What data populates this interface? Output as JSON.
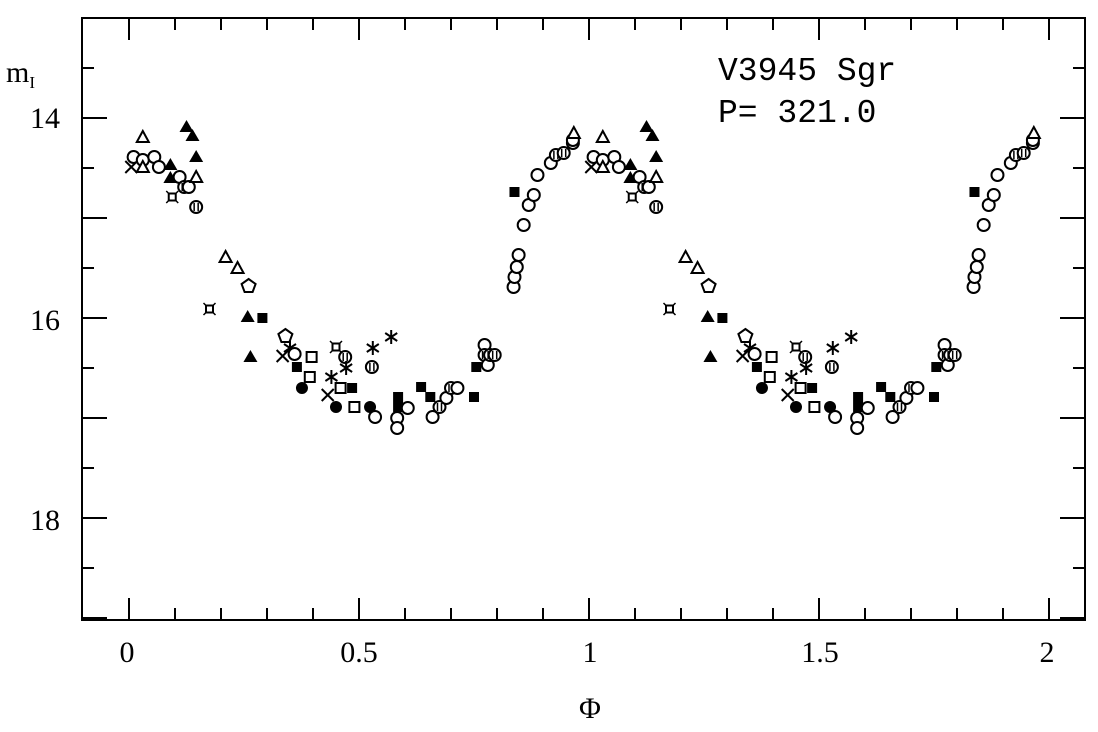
{
  "chart_data": {
    "type": "scatter",
    "title": "",
    "annotations": [
      "V3945 Sgr",
      "P= 321.0"
    ],
    "xlabel": "Φ",
    "ylabel": "m",
    "ylabel_subscript": "I",
    "xlim": [
      -0.1,
      2.08
    ],
    "ylim": [
      19,
      13
    ],
    "y_inverted": true,
    "x_ticks": [
      "0",
      "0.5",
      "1",
      "1.5",
      "2"
    ],
    "y_ticks": [
      "14",
      "16",
      "18"
    ],
    "grid": false,
    "repeated_cycles": 2,
    "marker_colors": {
      "ink": "#000000",
      "paper": "#ffffff"
    },
    "points": [
      [
        0.03,
        14.19,
        "open-triangle"
      ],
      [
        0.01,
        14.39,
        "open-circle"
      ],
      [
        0.03,
        14.42,
        "open-circle"
      ],
      [
        0.055,
        14.39,
        "open-circle"
      ],
      [
        0.065,
        14.49,
        "open-circle"
      ],
      [
        0.005,
        14.49,
        "cross"
      ],
      [
        0.03,
        14.49,
        "open-triangle"
      ],
      [
        0.09,
        14.47,
        "filled-triangle"
      ],
      [
        0.09,
        14.6,
        "filled-triangle"
      ],
      [
        0.125,
        14.09,
        "filled-triangle"
      ],
      [
        0.138,
        14.18,
        "filled-triangle"
      ],
      [
        0.146,
        14.39,
        "filled-triangle"
      ],
      [
        0.11,
        14.59,
        "open-circle"
      ],
      [
        0.12,
        14.69,
        "barred-circle"
      ],
      [
        0.13,
        14.69,
        "open-circle"
      ],
      [
        0.146,
        14.59,
        "open-triangle"
      ],
      [
        0.094,
        14.79,
        "star-square"
      ],
      [
        0.146,
        14.89,
        "barred-circle"
      ],
      [
        0.21,
        15.39,
        "open-triangle"
      ],
      [
        0.236,
        15.5,
        "open-triangle"
      ],
      [
        0.26,
        15.68,
        "open-pentagon"
      ],
      [
        0.175,
        15.91,
        "star-square"
      ],
      [
        0.258,
        15.99,
        "filled-triangle"
      ],
      [
        0.264,
        16.39,
        "filled-triangle"
      ],
      [
        0.29,
        16.0,
        "filled-square"
      ],
      [
        0.34,
        16.18,
        "open-pentagon"
      ],
      [
        0.334,
        16.38,
        "cross"
      ],
      [
        0.35,
        16.3,
        "asterisk"
      ],
      [
        0.36,
        16.36,
        "open-circle"
      ],
      [
        0.397,
        16.39,
        "open-square"
      ],
      [
        0.393,
        16.59,
        "open-square"
      ],
      [
        0.365,
        16.49,
        "filled-square"
      ],
      [
        0.376,
        16.7,
        "filled-circle"
      ],
      [
        0.45,
        16.29,
        "star-square"
      ],
      [
        0.47,
        16.39,
        "barred-circle"
      ],
      [
        0.472,
        16.5,
        "asterisk"
      ],
      [
        0.44,
        16.59,
        "asterisk"
      ],
      [
        0.432,
        16.77,
        "cross"
      ],
      [
        0.46,
        16.7,
        "open-square"
      ],
      [
        0.485,
        16.7,
        "filled-square"
      ],
      [
        0.45,
        16.89,
        "filled-circle"
      ],
      [
        0.49,
        16.89,
        "open-square"
      ],
      [
        0.53,
        16.3,
        "asterisk"
      ],
      [
        0.57,
        16.19,
        "asterisk"
      ],
      [
        0.528,
        16.49,
        "barred-circle"
      ],
      [
        0.524,
        16.89,
        "filled-circle"
      ],
      [
        0.535,
        16.99,
        "open-circle"
      ],
      [
        0.585,
        16.79,
        "filled-square"
      ],
      [
        0.585,
        16.89,
        "filled-square"
      ],
      [
        0.583,
        17.0,
        "open-circle"
      ],
      [
        0.583,
        17.1,
        "open-circle"
      ],
      [
        0.606,
        16.9,
        "open-circle"
      ],
      [
        0.635,
        16.69,
        "filled-square"
      ],
      [
        0.655,
        16.79,
        "filled-square"
      ],
      [
        0.66,
        16.99,
        "open-circle"
      ],
      [
        0.675,
        16.89,
        "barred-circle"
      ],
      [
        0.69,
        16.8,
        "open-circle"
      ],
      [
        0.7,
        16.7,
        "barred-circle"
      ],
      [
        0.714,
        16.7,
        "open-circle"
      ],
      [
        0.75,
        16.79,
        "filled-square"
      ],
      [
        0.755,
        16.49,
        "filled-square"
      ],
      [
        0.773,
        16.27,
        "open-circle"
      ],
      [
        0.773,
        16.37,
        "barred-circle"
      ],
      [
        0.78,
        16.47,
        "open-circle"
      ],
      [
        0.785,
        16.37,
        "barred-circle"
      ],
      [
        0.795,
        16.37,
        "barred-circle"
      ],
      [
        0.836,
        15.69,
        "open-circle"
      ],
      [
        0.838,
        15.59,
        "open-circle"
      ],
      [
        0.843,
        15.49,
        "open-circle"
      ],
      [
        0.847,
        15.37,
        "open-circle"
      ],
      [
        0.858,
        15.07,
        "open-circle"
      ],
      [
        0.869,
        14.87,
        "open-circle"
      ],
      [
        0.88,
        14.77,
        "open-circle"
      ],
      [
        0.888,
        14.57,
        "open-circle"
      ],
      [
        0.838,
        14.74,
        "filled-square"
      ],
      [
        0.917,
        14.45,
        "open-circle"
      ],
      [
        0.928,
        14.37,
        "barred-circle"
      ],
      [
        0.945,
        14.35,
        "barred-circle"
      ],
      [
        0.965,
        14.25,
        "open-circle"
      ],
      [
        0.965,
        14.22,
        "open-circle"
      ],
      [
        0.967,
        14.15,
        "open-triangle"
      ]
    ]
  }
}
